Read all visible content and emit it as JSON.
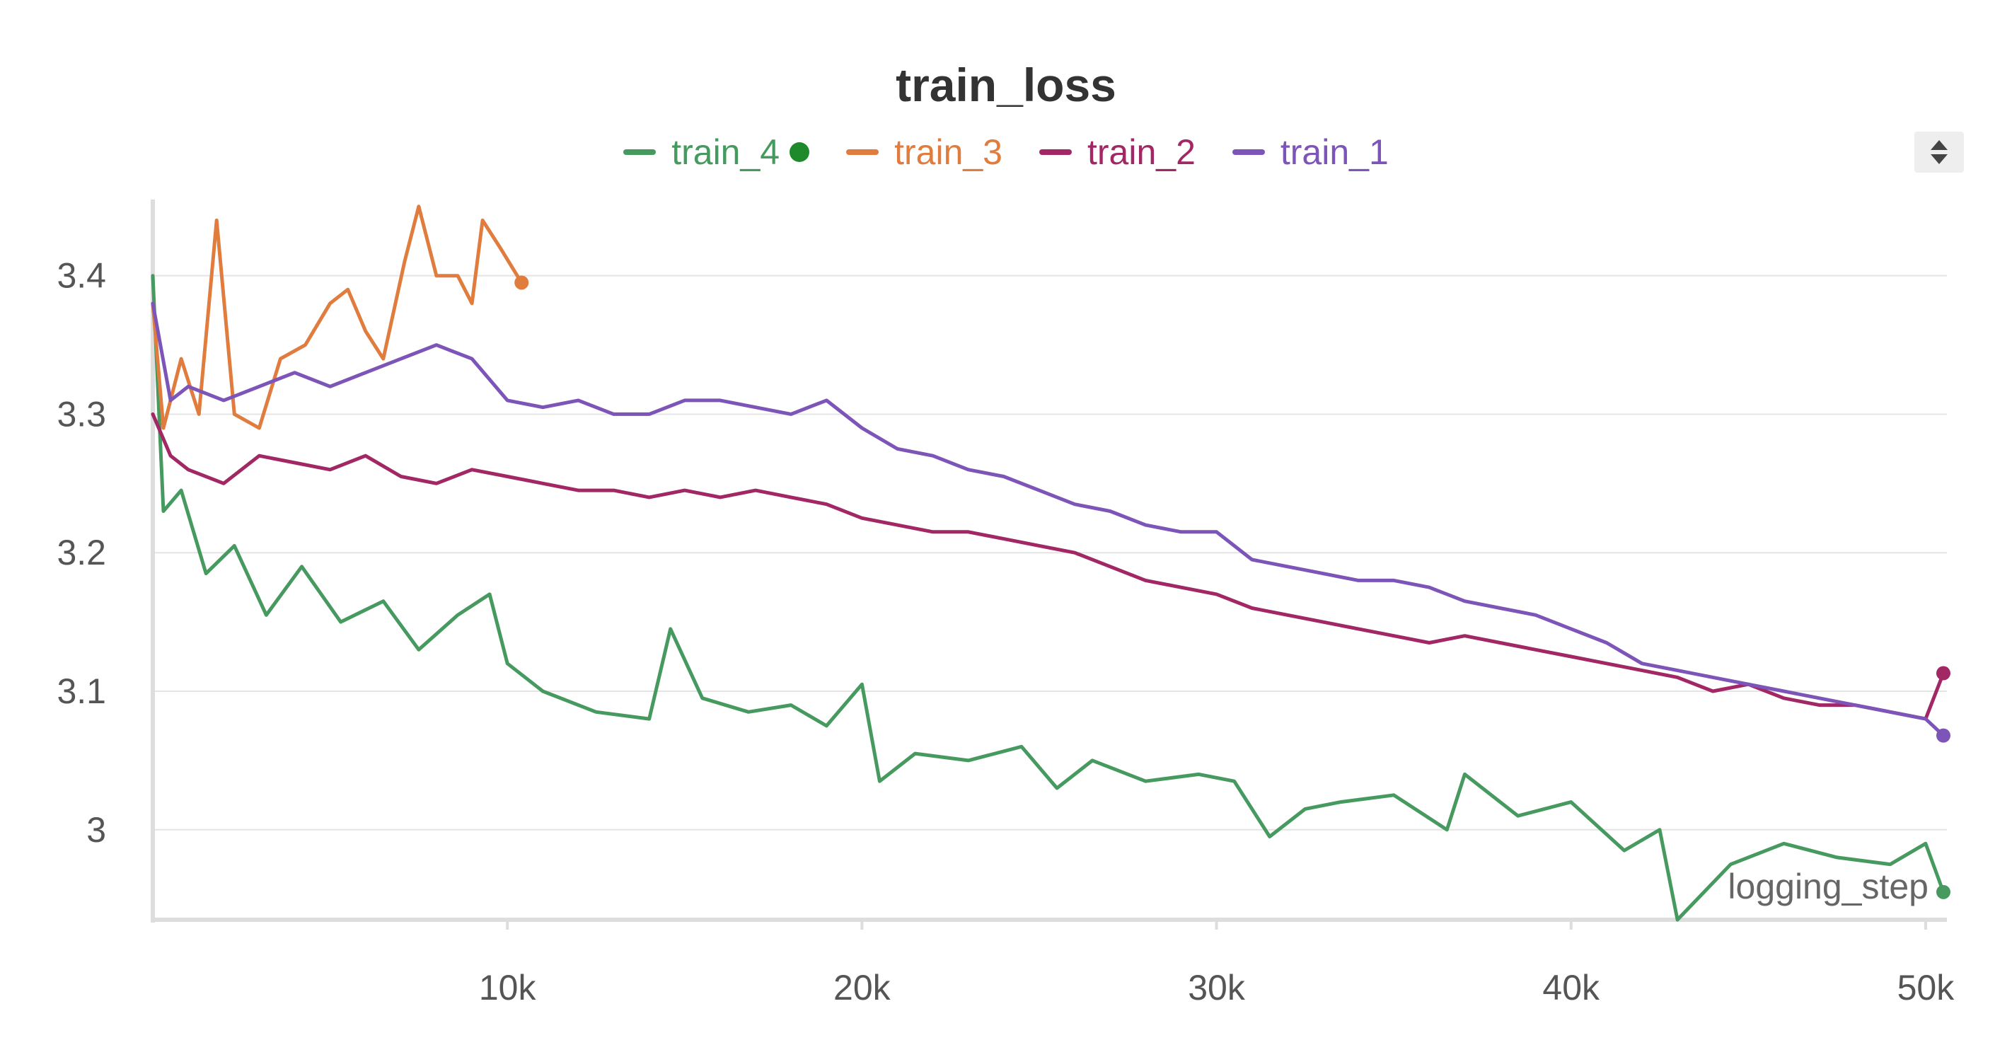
{
  "chart_data": {
    "type": "line",
    "title": "train_loss",
    "xlabel": "logging_step",
    "ylabel": "",
    "xlim": [
      0,
      50600
    ],
    "ylim": [
      2.935,
      3.455
    ],
    "x_ticks": [
      10000,
      20000,
      30000,
      40000,
      50000
    ],
    "x_tick_labels": [
      "10k",
      "20k",
      "30k",
      "40k",
      "50k"
    ],
    "y_ticks": [
      3.0,
      3.1,
      3.2,
      3.3,
      3.4
    ],
    "y_tick_labels": [
      "3",
      "3.1",
      "3.2",
      "3.3",
      "3.4"
    ],
    "grid": true,
    "legend_position": "top-center",
    "series": [
      {
        "name": "train_4",
        "color": "#479a5f",
        "active_marker": true,
        "x": [
          0,
          300,
          800,
          1500,
          2300,
          3200,
          4200,
          5300,
          6500,
          7500,
          8600,
          9500,
          10000,
          11000,
          12500,
          14000,
          14600,
          15500,
          16800,
          18000,
          19000,
          20000,
          20500,
          21500,
          23000,
          24500,
          25500,
          26500,
          28000,
          29500,
          30500,
          31500,
          32500,
          33500,
          35000,
          36500,
          37000,
          38500,
          40000,
          41500,
          42500,
          43000,
          44500,
          46000,
          47500,
          49000,
          50000,
          50500
        ],
        "values": [
          3.4,
          3.23,
          3.245,
          3.185,
          3.205,
          3.155,
          3.19,
          3.15,
          3.165,
          3.13,
          3.155,
          3.17,
          3.12,
          3.1,
          3.085,
          3.08,
          3.145,
          3.095,
          3.085,
          3.09,
          3.075,
          3.105,
          3.035,
          3.055,
          3.05,
          3.06,
          3.03,
          3.05,
          3.035,
          3.04,
          3.035,
          2.995,
          3.015,
          3.02,
          3.025,
          3.0,
          3.04,
          3.01,
          3.02,
          2.985,
          3.0,
          2.935,
          2.975,
          2.99,
          2.98,
          2.975,
          2.99,
          2.955
        ]
      },
      {
        "name": "train_3",
        "color": "#e07c3e",
        "active_marker": false,
        "x": [
          0,
          300,
          800,
          1300,
          1800,
          2300,
          3000,
          3600,
          4300,
          5000,
          5500,
          6000,
          6500,
          7100,
          7500,
          8000,
          8600,
          9000,
          9300,
          9800,
          10400
        ],
        "values": [
          3.38,
          3.29,
          3.34,
          3.3,
          3.44,
          3.3,
          3.29,
          3.34,
          3.35,
          3.38,
          3.39,
          3.36,
          3.34,
          3.41,
          3.45,
          3.4,
          3.4,
          3.38,
          3.44,
          3.42,
          3.395
        ]
      },
      {
        "name": "train_2",
        "color": "#a12864",
        "active_marker": false,
        "x": [
          0,
          500,
          1000,
          2000,
          3000,
          4000,
          5000,
          6000,
          7000,
          8000,
          9000,
          10000,
          11000,
          12000,
          13000,
          14000,
          15000,
          16000,
          17000,
          18000,
          19000,
          20000,
          21000,
          22000,
          23000,
          24000,
          25000,
          26000,
          27000,
          28000,
          29000,
          30000,
          31000,
          32000,
          33000,
          34000,
          35000,
          36000,
          37000,
          38000,
          39000,
          40000,
          41000,
          42000,
          43000,
          44000,
          45000,
          46000,
          47000,
          48000,
          49000,
          50000,
          50500
        ],
        "values": [
          3.3,
          3.27,
          3.26,
          3.25,
          3.27,
          3.265,
          3.26,
          3.27,
          3.255,
          3.25,
          3.26,
          3.255,
          3.25,
          3.245,
          3.245,
          3.24,
          3.245,
          3.24,
          3.245,
          3.24,
          3.235,
          3.225,
          3.22,
          3.215,
          3.215,
          3.21,
          3.205,
          3.2,
          3.19,
          3.18,
          3.175,
          3.17,
          3.16,
          3.155,
          3.15,
          3.145,
          3.14,
          3.135,
          3.14,
          3.135,
          3.13,
          3.125,
          3.12,
          3.115,
          3.11,
          3.1,
          3.105,
          3.095,
          3.09,
          3.09,
          3.085,
          3.08,
          3.113
        ]
      },
      {
        "name": "train_1",
        "color": "#7d55b8",
        "active_marker": false,
        "x": [
          0,
          500,
          1000,
          2000,
          3000,
          4000,
          5000,
          6000,
          7000,
          8000,
          9000,
          10000,
          11000,
          12000,
          13000,
          14000,
          15000,
          16000,
          17000,
          18000,
          19000,
          20000,
          21000,
          22000,
          23000,
          24000,
          25000,
          26000,
          27000,
          28000,
          29000,
          30000,
          31000,
          32000,
          33000,
          34000,
          35000,
          36000,
          37000,
          38000,
          39000,
          40000,
          41000,
          42000,
          43000,
          44000,
          45000,
          46000,
          47000,
          48000,
          49000,
          50000,
          50500
        ],
        "values": [
          3.38,
          3.31,
          3.32,
          3.31,
          3.32,
          3.33,
          3.32,
          3.33,
          3.34,
          3.35,
          3.34,
          3.31,
          3.305,
          3.31,
          3.3,
          3.3,
          3.31,
          3.31,
          3.305,
          3.3,
          3.31,
          3.29,
          3.275,
          3.27,
          3.26,
          3.255,
          3.245,
          3.235,
          3.23,
          3.22,
          3.215,
          3.215,
          3.195,
          3.19,
          3.185,
          3.18,
          3.18,
          3.175,
          3.165,
          3.16,
          3.155,
          3.145,
          3.135,
          3.12,
          3.115,
          3.11,
          3.105,
          3.1,
          3.095,
          3.09,
          3.085,
          3.08,
          3.068
        ]
      }
    ]
  }
}
